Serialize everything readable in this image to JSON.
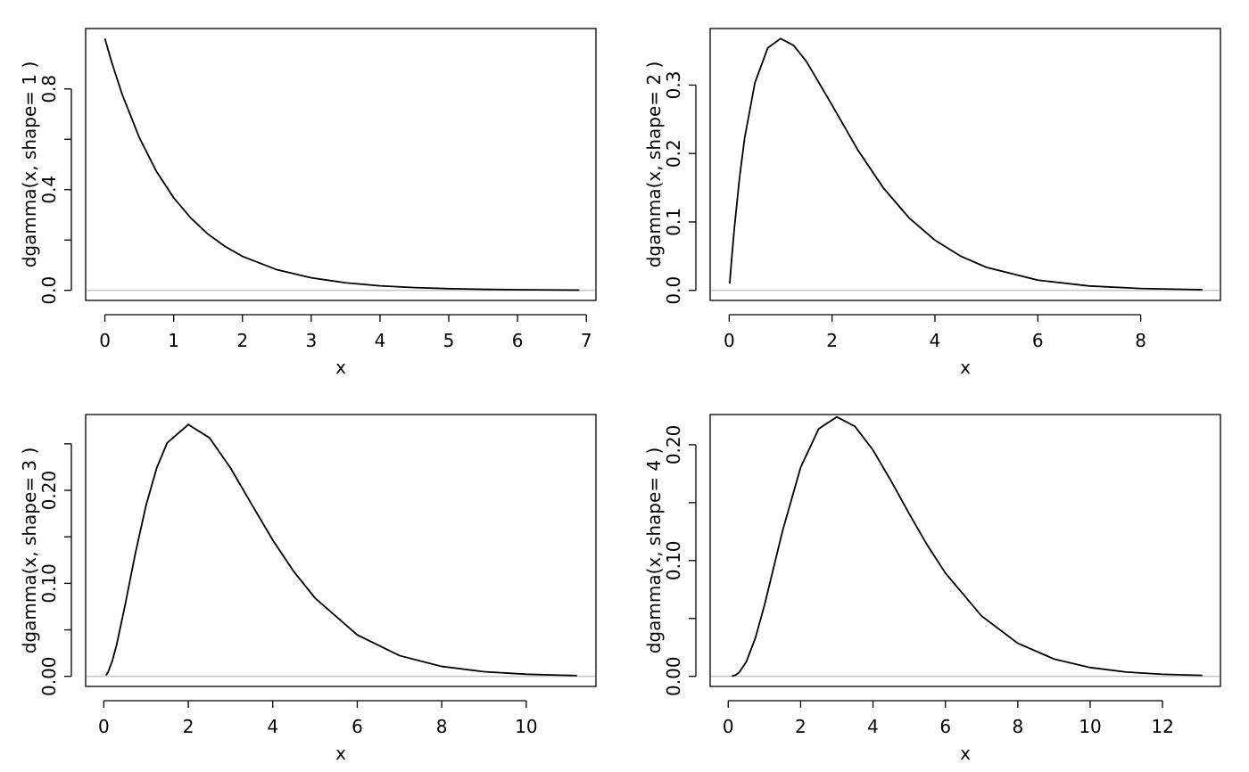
{
  "figure": {
    "background": "#ffffff",
    "curve_color": "#000000",
    "baseline_color": "#c8c8c8"
  },
  "chart_data": [
    {
      "type": "line",
      "xlabel": "x",
      "ylabel": "dgamma(x, shape= 1 )",
      "shape": 1,
      "xlim": [
        -0.28,
        7.14
      ],
      "ylim": [
        -0.04,
        1.04
      ],
      "xticks": [
        0,
        1,
        2,
        3,
        4,
        5,
        6,
        7
      ],
      "xtick_labels": [
        "0",
        "1",
        "2",
        "3",
        "4",
        "5",
        "6",
        "7"
      ],
      "yticks": [
        0.0,
        0.2,
        0.4,
        0.6,
        0.8
      ],
      "ytick_labels": [
        "0.0",
        "",
        "0.4",
        "",
        "0.8"
      ],
      "baseline_y": 0,
      "x": [
        0,
        0.1,
        0.25,
        0.5,
        0.75,
        1,
        1.25,
        1.5,
        1.75,
        2,
        2.5,
        3,
        3.5,
        4,
        4.5,
        5,
        5.5,
        6,
        6.5,
        6.9
      ],
      "y": [
        1.0,
        0.905,
        0.779,
        0.607,
        0.472,
        0.368,
        0.287,
        0.223,
        0.174,
        0.135,
        0.082,
        0.05,
        0.03,
        0.018,
        0.011,
        0.0067,
        0.0041,
        0.0025,
        0.0015,
        0.001
      ]
    },
    {
      "type": "line",
      "xlabel": "x",
      "ylabel": "dgamma(x, shape= 2 )",
      "shape": 2,
      "xlim": [
        -0.37,
        9.55
      ],
      "ylim": [
        -0.0147,
        0.3826
      ],
      "xticks": [
        0,
        2,
        4,
        6,
        8
      ],
      "xtick_labels": [
        "0",
        "2",
        "4",
        "6",
        "8"
      ],
      "yticks": [
        0.0,
        0.1,
        0.2,
        0.3
      ],
      "ytick_labels": [
        "0.0",
        "0.1",
        "0.2",
        "0.3"
      ],
      "baseline_y": 0,
      "x": [
        0.01,
        0.05,
        0.1,
        0.2,
        0.3,
        0.5,
        0.75,
        1,
        1.25,
        1.5,
        2,
        2.5,
        3,
        3.5,
        4,
        4.5,
        5,
        6,
        7,
        8,
        9.2
      ],
      "y": [
        0.0099,
        0.0476,
        0.0905,
        0.1637,
        0.2222,
        0.3033,
        0.3543,
        0.3679,
        0.3581,
        0.3347,
        0.2707,
        0.2052,
        0.1494,
        0.1057,
        0.0733,
        0.05,
        0.0337,
        0.0149,
        0.0064,
        0.0027,
        0.0009
      ]
    },
    {
      "type": "line",
      "xlabel": "x",
      "ylabel": "dgamma(x, shape= 3 )",
      "shape": 3,
      "xlim": [
        -0.43,
        11.65
      ],
      "ylim": [
        -0.0108,
        0.2815
      ],
      "xticks": [
        0,
        2,
        4,
        6,
        8,
        10
      ],
      "xtick_labels": [
        "0",
        "2",
        "4",
        "6",
        "8",
        "10"
      ],
      "yticks": [
        0.0,
        0.05,
        0.1,
        0.15,
        0.2,
        0.25
      ],
      "ytick_labels": [
        "0.00",
        "",
        "0.10",
        "",
        "0.20",
        ""
      ],
      "baseline_y": 0,
      "x": [
        0.05,
        0.1,
        0.2,
        0.3,
        0.5,
        0.75,
        1,
        1.25,
        1.5,
        2,
        2.5,
        3,
        3.5,
        4,
        4.5,
        5,
        6,
        7,
        8,
        9,
        10,
        11.2
      ],
      "y": [
        0.0012,
        0.0045,
        0.0164,
        0.0333,
        0.0758,
        0.1329,
        0.1839,
        0.2238,
        0.251,
        0.2707,
        0.2565,
        0.224,
        0.185,
        0.1465,
        0.1125,
        0.0842,
        0.0446,
        0.0223,
        0.0107,
        0.005,
        0.0023,
        0.0008
      ]
    },
    {
      "type": "line",
      "xlabel": "x",
      "ylabel": "dgamma(x, shape= 4 )",
      "shape": 4,
      "xlim": [
        -0.5,
        13.6
      ],
      "ylim": [
        -0.0087,
        0.2261
      ],
      "xticks": [
        0,
        2,
        4,
        6,
        8,
        10,
        12
      ],
      "xtick_labels": [
        "0",
        "2",
        "4",
        "6",
        "8",
        "10",
        "12"
      ],
      "yticks": [
        0.0,
        0.05,
        0.1,
        0.15,
        0.2
      ],
      "ytick_labels": [
        "0.00",
        "",
        "0.10",
        "",
        "0.20"
      ],
      "baseline_y": 0,
      "x": [
        0.1,
        0.2,
        0.3,
        0.5,
        0.75,
        1,
        1.5,
        2,
        2.5,
        3,
        3.5,
        4,
        4.5,
        5,
        5.5,
        6,
        7,
        8,
        9,
        10,
        11,
        12,
        13.1
      ],
      "y": [
        0.00015,
        0.0011,
        0.0033,
        0.0126,
        0.0332,
        0.0613,
        0.1255,
        0.1804,
        0.2138,
        0.224,
        0.2158,
        0.1954,
        0.1687,
        0.1404,
        0.1133,
        0.0892,
        0.0521,
        0.0286,
        0.015,
        0.0076,
        0.0037,
        0.0018,
        0.0008
      ]
    }
  ]
}
